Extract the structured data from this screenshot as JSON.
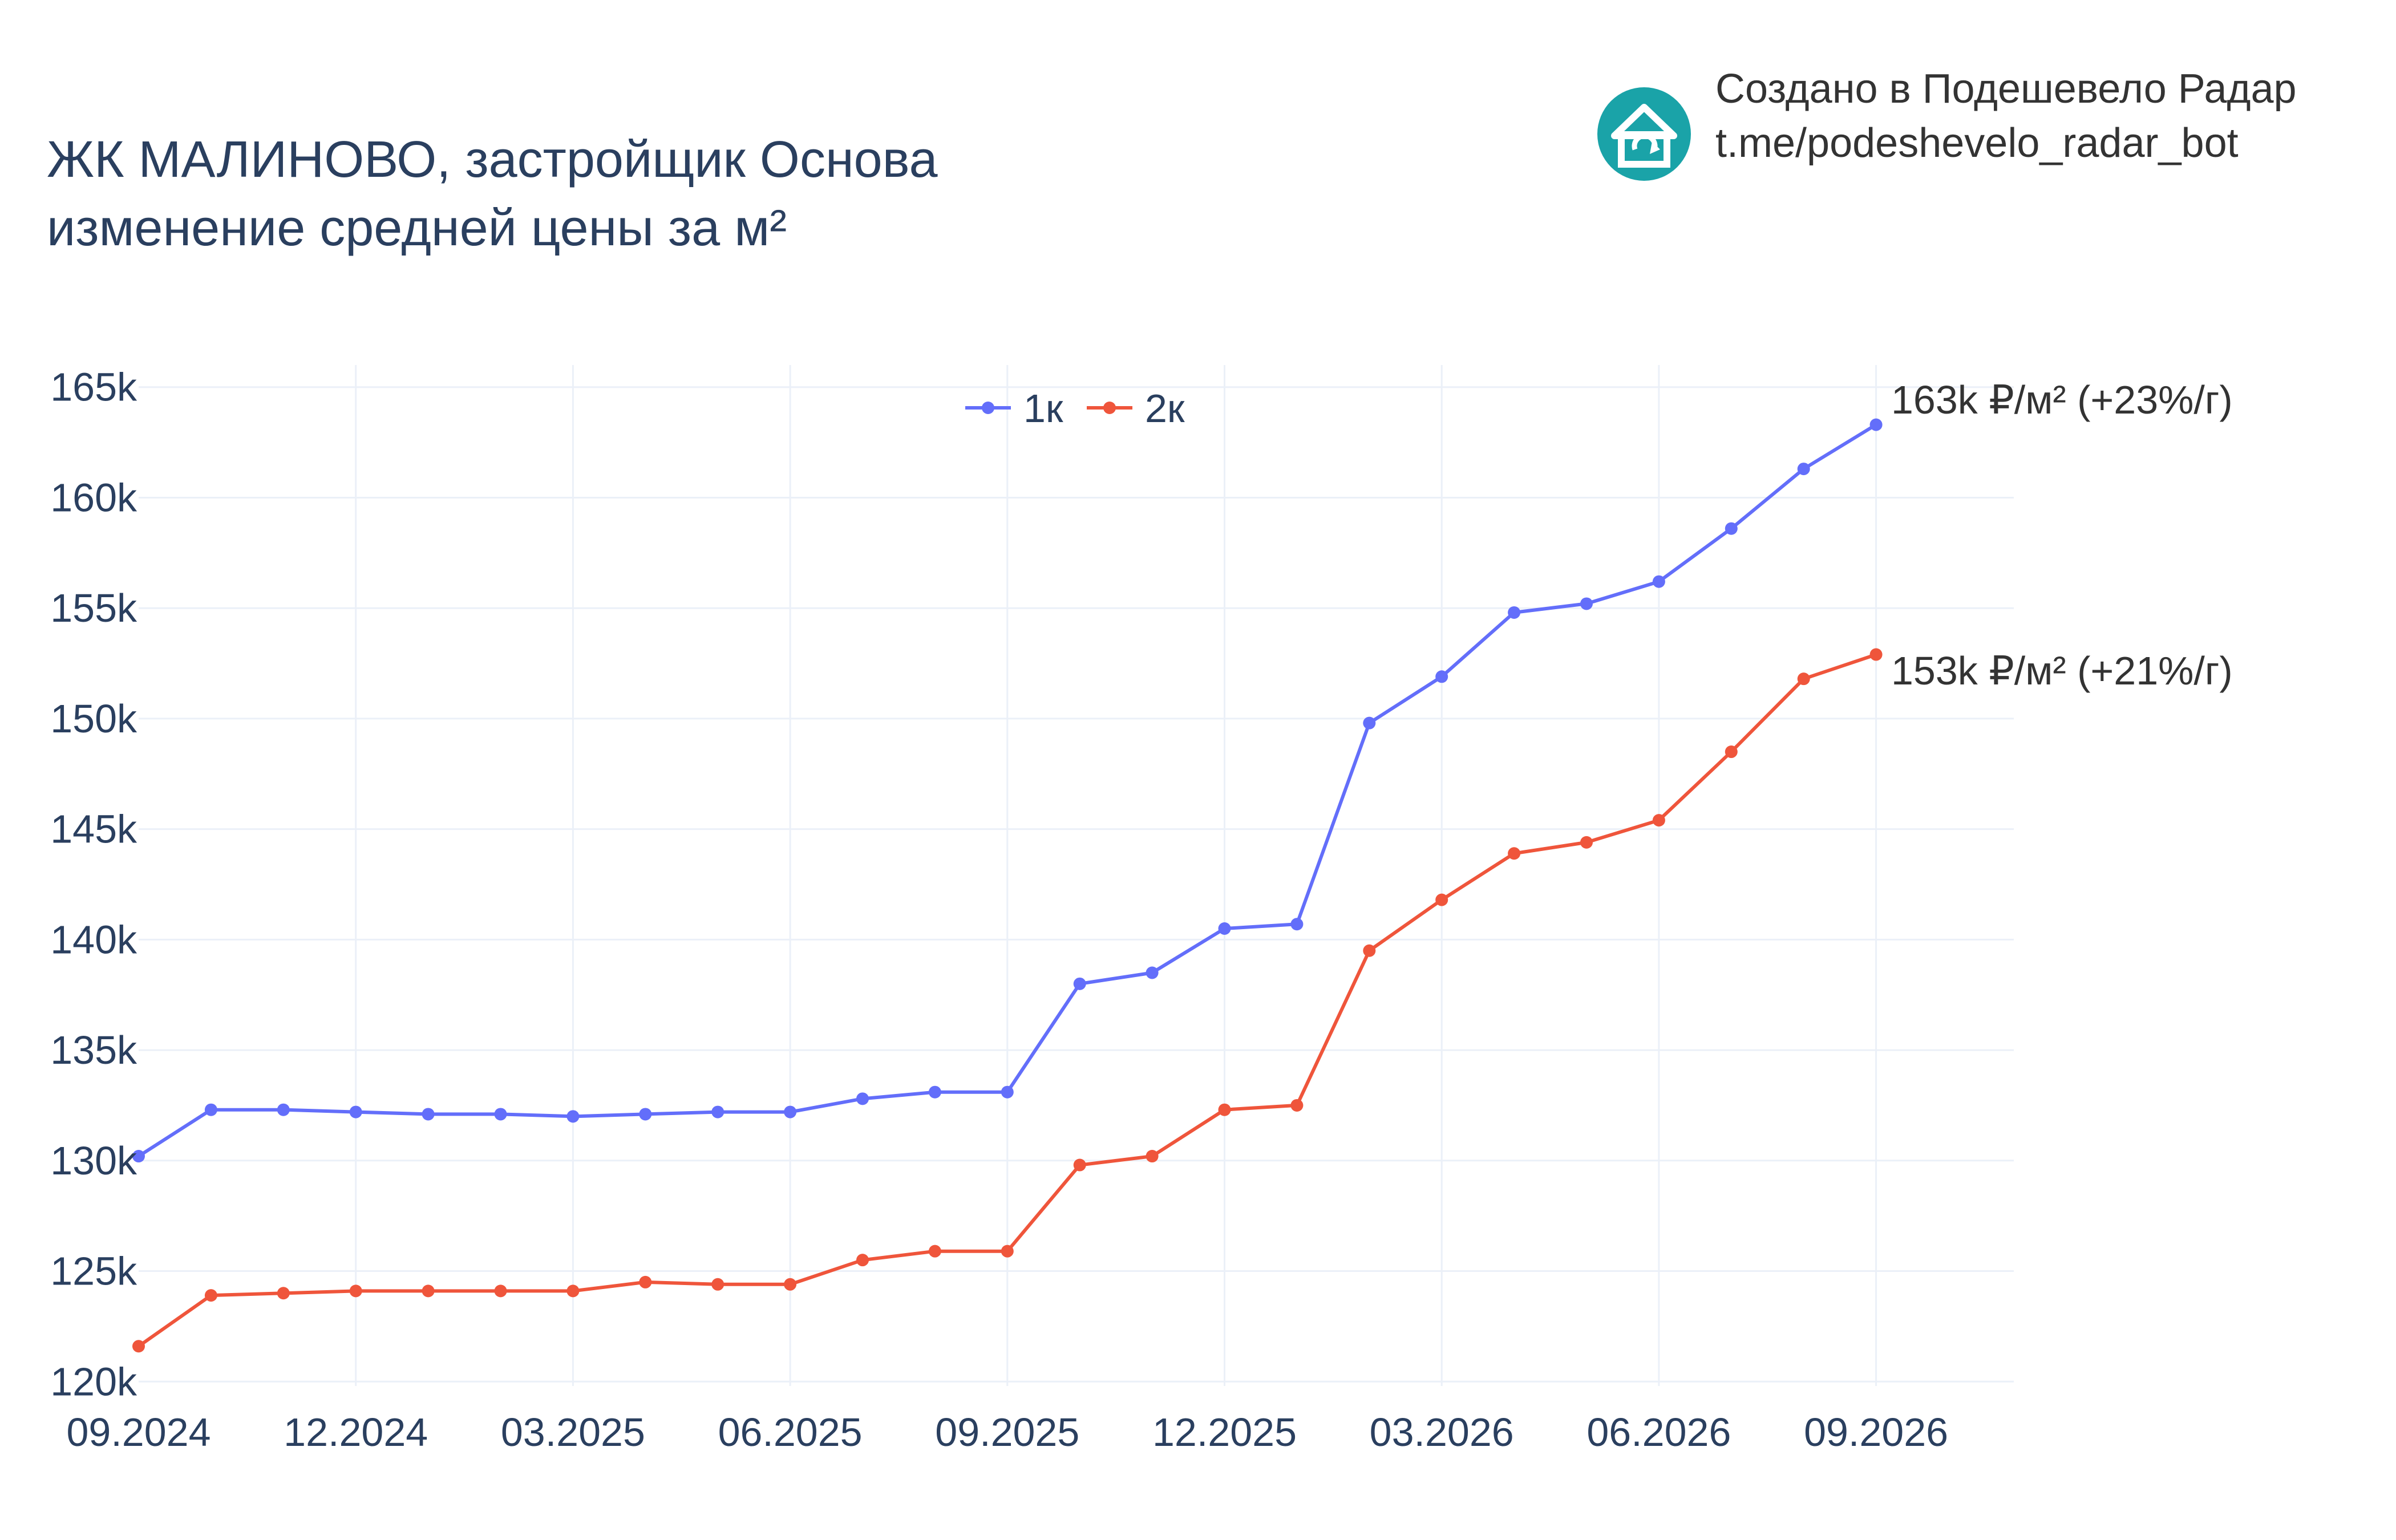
{
  "title": {
    "line1": "ЖК МАЛИНОВО, застройщик Основа",
    "line2": "изменение средней цены за м²"
  },
  "brand": {
    "line1": "Создано в Подешевело Радар",
    "line2": "t.me/podeshevelo_radar_bot",
    "logo_icon": "house-refresh-icon",
    "logo_color": "#1aa3a8"
  },
  "chart_data": {
    "type": "line",
    "x_tick_labels": [
      "09.2024",
      "12.2024",
      "03.2025",
      "06.2025",
      "09.2025",
      "12.2025",
      "03.2026",
      "06.2026",
      "09.2026"
    ],
    "x": [
      "09.2024",
      "10.2024",
      "11.2024",
      "12.2024",
      "01.2025",
      "02.2025",
      "03.2025",
      "04.2025",
      "05.2025",
      "06.2025",
      "07.2025",
      "08.2025",
      "09.2025",
      "10.2025",
      "11.2025",
      "12.2025",
      "01.2026",
      "02.2026",
      "03.2026",
      "04.2026",
      "05.2026",
      "06.2026",
      "07.2026",
      "08.2026",
      "09.2026"
    ],
    "y_tick_values": [
      120000,
      125000,
      130000,
      135000,
      140000,
      145000,
      150000,
      155000,
      160000,
      165000
    ],
    "y_tick_labels": [
      "120k",
      "125k",
      "130k",
      "135k",
      "140k",
      "145k",
      "150k",
      "155k",
      "160k",
      "165k"
    ],
    "ylim": [
      119800,
      166000
    ],
    "grid": true,
    "legend_placement": "top-center",
    "series": [
      {
        "name": "1к",
        "color": "#636efa",
        "values": [
          130200,
          132300,
          132300,
          132200,
          132100,
          132100,
          132000,
          132100,
          132200,
          132200,
          132800,
          133100,
          133100,
          138000,
          138500,
          140500,
          140700,
          149800,
          151900,
          154800,
          155200,
          156200,
          158600,
          161300,
          163300
        ],
        "end_label": "163k ₽/м² (+23%/г)"
      },
      {
        "name": "2к",
        "color": "#ef553b",
        "values": [
          121600,
          123900,
          124000,
          124100,
          124100,
          124100,
          124100,
          124500,
          124400,
          124400,
          125500,
          125900,
          125900,
          129800,
          130200,
          132300,
          132500,
          139500,
          141800,
          143900,
          144400,
          145400,
          148500,
          151800,
          152900
        ],
        "end_label": "153k ₽/м² (+21%/г)"
      }
    ]
  }
}
